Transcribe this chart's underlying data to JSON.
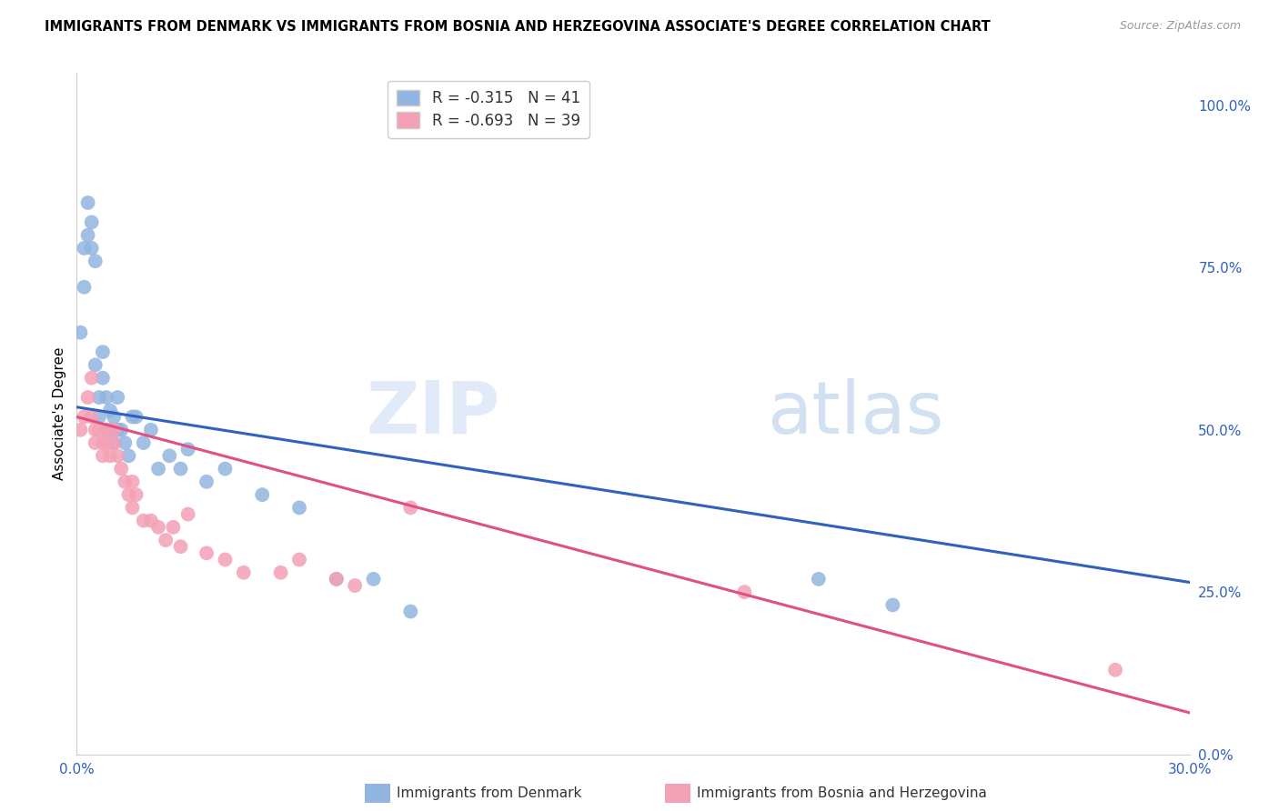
{
  "title": "IMMIGRANTS FROM DENMARK VS IMMIGRANTS FROM BOSNIA AND HERZEGOVINA ASSOCIATE'S DEGREE CORRELATION CHART",
  "source": "Source: ZipAtlas.com",
  "ylabel": "Associate's Degree",
  "xlim": [
    0.0,
    0.3
  ],
  "ylim": [
    0.0,
    1.05
  ],
  "right_yticks": [
    0.0,
    0.25,
    0.5,
    0.75,
    1.0
  ],
  "right_yticklabels": [
    "0.0%",
    "25.0%",
    "50.0%",
    "75.0%",
    "100.0%"
  ],
  "denmark_R": -0.315,
  "denmark_N": 41,
  "bosnia_R": -0.693,
  "bosnia_N": 39,
  "denmark_color": "#92b4e0",
  "bosnia_color": "#f4a0b5",
  "denmark_line_color": "#3060c0",
  "bosnia_line_color": "#e05080",
  "denmark_x": [
    0.001,
    0.002,
    0.002,
    0.003,
    0.003,
    0.004,
    0.004,
    0.005,
    0.005,
    0.006,
    0.006,
    0.007,
    0.007,
    0.008,
    0.008,
    0.009,
    0.009,
    0.01,
    0.01,
    0.011,
    0.011,
    0.012,
    0.013,
    0.014,
    0.015,
    0.016,
    0.018,
    0.02,
    0.022,
    0.025,
    0.028,
    0.03,
    0.035,
    0.04,
    0.05,
    0.06,
    0.07,
    0.08,
    0.09,
    0.2,
    0.22
  ],
  "denmark_y": [
    0.65,
    0.78,
    0.72,
    0.85,
    0.8,
    0.82,
    0.78,
    0.76,
    0.6,
    0.55,
    0.52,
    0.62,
    0.58,
    0.55,
    0.5,
    0.53,
    0.5,
    0.52,
    0.48,
    0.55,
    0.5,
    0.5,
    0.48,
    0.46,
    0.52,
    0.52,
    0.48,
    0.5,
    0.44,
    0.46,
    0.44,
    0.47,
    0.42,
    0.44,
    0.4,
    0.38,
    0.27,
    0.27,
    0.22,
    0.27,
    0.23
  ],
  "bosnia_x": [
    0.001,
    0.002,
    0.003,
    0.004,
    0.004,
    0.005,
    0.005,
    0.006,
    0.007,
    0.007,
    0.008,
    0.008,
    0.009,
    0.01,
    0.01,
    0.011,
    0.012,
    0.013,
    0.014,
    0.015,
    0.015,
    0.016,
    0.018,
    0.02,
    0.022,
    0.024,
    0.026,
    0.028,
    0.03,
    0.035,
    0.04,
    0.045,
    0.055,
    0.06,
    0.07,
    0.075,
    0.09,
    0.18,
    0.28
  ],
  "bosnia_y": [
    0.5,
    0.52,
    0.55,
    0.58,
    0.52,
    0.5,
    0.48,
    0.5,
    0.48,
    0.46,
    0.5,
    0.48,
    0.46,
    0.48,
    0.5,
    0.46,
    0.44,
    0.42,
    0.4,
    0.42,
    0.38,
    0.4,
    0.36,
    0.36,
    0.35,
    0.33,
    0.35,
    0.32,
    0.37,
    0.31,
    0.3,
    0.28,
    0.28,
    0.3,
    0.27,
    0.26,
    0.38,
    0.25,
    0.13
  ]
}
